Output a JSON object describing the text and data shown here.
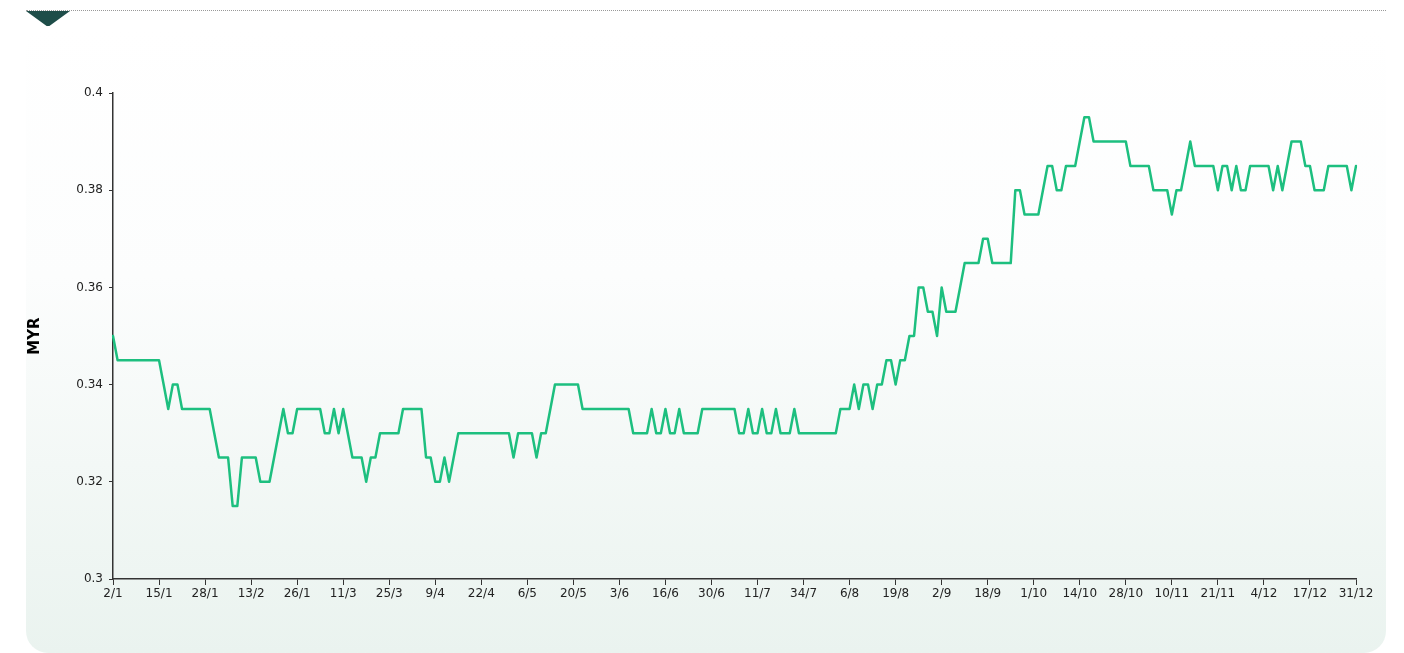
{
  "chart_data": {
    "type": "line",
    "ylabel": "MYR",
    "grid": false,
    "legend": false,
    "marker": "none",
    "line_style": "solid",
    "categories": [
      "2/1",
      null,
      null,
      null,
      null,
      null,
      null,
      null,
      null,
      null,
      "15/1",
      null,
      null,
      null,
      null,
      null,
      null,
      null,
      null,
      null,
      "28/1",
      null,
      null,
      null,
      null,
      null,
      null,
      null,
      null,
      null,
      "13/2",
      null,
      null,
      null,
      null,
      null,
      null,
      null,
      null,
      null,
      "26/1",
      null,
      null,
      null,
      null,
      null,
      null,
      null,
      null,
      null,
      "11/3",
      null,
      null,
      null,
      null,
      null,
      null,
      null,
      null,
      null,
      "25/3",
      null,
      null,
      null,
      null,
      null,
      null,
      null,
      null,
      null,
      "9/4",
      null,
      null,
      null,
      null,
      null,
      null,
      null,
      null,
      null,
      "22/4",
      null,
      null,
      null,
      null,
      null,
      null,
      null,
      null,
      null,
      "6/5",
      null,
      null,
      null,
      null,
      null,
      null,
      null,
      null,
      null,
      "20/5",
      null,
      null,
      null,
      null,
      null,
      null,
      null,
      null,
      null,
      "3/6",
      null,
      null,
      null,
      null,
      null,
      null,
      null,
      null,
      null,
      "16/6",
      null,
      null,
      null,
      null,
      null,
      null,
      null,
      null,
      null,
      "30/6",
      null,
      null,
      null,
      null,
      null,
      null,
      null,
      null,
      null,
      "11/7",
      null,
      null,
      null,
      null,
      null,
      null,
      null,
      null,
      null,
      "34/7",
      null,
      null,
      null,
      null,
      null,
      null,
      null,
      null,
      null,
      "6/8",
      null,
      null,
      null,
      null,
      null,
      null,
      null,
      null,
      null,
      "19/8",
      null,
      null,
      null,
      null,
      null,
      null,
      null,
      null,
      null,
      "2/9",
      null,
      null,
      null,
      null,
      null,
      null,
      null,
      null,
      null,
      "18/9",
      null,
      null,
      null,
      null,
      null,
      null,
      null,
      null,
      null,
      "1/10",
      null,
      null,
      null,
      null,
      null,
      null,
      null,
      null,
      null,
      "14/10",
      null,
      null,
      null,
      null,
      null,
      null,
      null,
      null,
      null,
      "28/10",
      null,
      null,
      null,
      null,
      null,
      null,
      null,
      null,
      null,
      "10/11",
      null,
      null,
      null,
      null,
      null,
      null,
      null,
      null,
      null,
      "21/11",
      null,
      null,
      null,
      null,
      null,
      null,
      null,
      null,
      null,
      "4/12",
      null,
      null,
      null,
      null,
      null,
      null,
      null,
      null,
      null,
      "17/12",
      null,
      null,
      null,
      null,
      null,
      null,
      null,
      null,
      null,
      "31/12"
    ],
    "ylim": [
      0.3,
      0.4
    ],
    "yticks": [
      0.3,
      0.32,
      0.34,
      0.36,
      0.38,
      0.4
    ],
    "series": [
      {
        "color": "#1dbf7f",
        "values": [
          0.35,
          0.345,
          0.345,
          0.345,
          0.345,
          0.345,
          0.345,
          0.345,
          0.345,
          0.345,
          0.345,
          0.34,
          0.335,
          0.34,
          0.34,
          0.335,
          0.335,
          0.335,
          0.335,
          0.335,
          0.335,
          0.335,
          0.33,
          0.325,
          0.325,
          0.325,
          0.315,
          0.315,
          0.325,
          0.325,
          0.325,
          0.325,
          0.32,
          0.32,
          0.32,
          0.325,
          0.33,
          0.335,
          0.33,
          0.33,
          0.335,
          0.335,
          0.335,
          0.335,
          0.335,
          0.335,
          0.33,
          0.33,
          0.335,
          0.33,
          0.335,
          0.33,
          0.325,
          0.325,
          0.325,
          0.32,
          0.325,
          0.325,
          0.33,
          0.33,
          0.33,
          0.33,
          0.33,
          0.335,
          0.335,
          0.335,
          0.335,
          0.335,
          0.325,
          0.325,
          0.32,
          0.32,
          0.325,
          0.32,
          0.325,
          0.33,
          0.33,
          0.33,
          0.33,
          0.33,
          0.33,
          0.33,
          0.33,
          0.33,
          0.33,
          0.33,
          0.33,
          0.325,
          0.33,
          0.33,
          0.33,
          0.33,
          0.325,
          0.33,
          0.33,
          0.335,
          0.34,
          0.34,
          0.34,
          0.34,
          0.34,
          0.34,
          0.335,
          0.335,
          0.335,
          0.335,
          0.335,
          0.335,
          0.335,
          0.335,
          0.335,
          0.335,
          0.335,
          0.33,
          0.33,
          0.33,
          0.33,
          0.335,
          0.33,
          0.33,
          0.335,
          0.33,
          0.33,
          0.335,
          0.33,
          0.33,
          0.33,
          0.33,
          0.335,
          0.335,
          0.335,
          0.335,
          0.335,
          0.335,
          0.335,
          0.335,
          0.33,
          0.33,
          0.335,
          0.33,
          0.33,
          0.335,
          0.33,
          0.33,
          0.335,
          0.33,
          0.33,
          0.33,
          0.335,
          0.33,
          0.33,
          0.33,
          0.33,
          0.33,
          0.33,
          0.33,
          0.33,
          0.33,
          0.335,
          0.335,
          0.335,
          0.34,
          0.335,
          0.34,
          0.34,
          0.335,
          0.34,
          0.34,
          0.345,
          0.345,
          0.34,
          0.345,
          0.345,
          0.35,
          0.35,
          0.36,
          0.36,
          0.355,
          0.355,
          0.35,
          0.36,
          0.355,
          0.355,
          0.355,
          0.36,
          0.365,
          0.365,
          0.365,
          0.365,
          0.37,
          0.37,
          0.365,
          0.365,
          0.365,
          0.365,
          0.365,
          0.38,
          0.38,
          0.375,
          0.375,
          0.375,
          0.375,
          0.38,
          0.385,
          0.385,
          0.38,
          0.38,
          0.385,
          0.385,
          0.385,
          0.39,
          0.395,
          0.395,
          0.39,
          0.39,
          0.39,
          0.39,
          0.39,
          0.39,
          0.39,
          0.39,
          0.385,
          0.385,
          0.385,
          0.385,
          0.385,
          0.38,
          0.38,
          0.38,
          0.38,
          0.375,
          0.38,
          0.38,
          0.385,
          0.39,
          0.385,
          0.385,
          0.385,
          0.385,
          0.385,
          0.38,
          0.385,
          0.385,
          0.38,
          0.385,
          0.38,
          0.38,
          0.385,
          0.385,
          0.385,
          0.385,
          0.385,
          0.38,
          0.385,
          0.38,
          0.385,
          0.39,
          0.39,
          0.39,
          0.385,
          0.385,
          0.38,
          0.38,
          0.38,
          0.385,
          0.385,
          0.385,
          0.385,
          0.385,
          0.38,
          0.385
        ]
      }
    ]
  }
}
